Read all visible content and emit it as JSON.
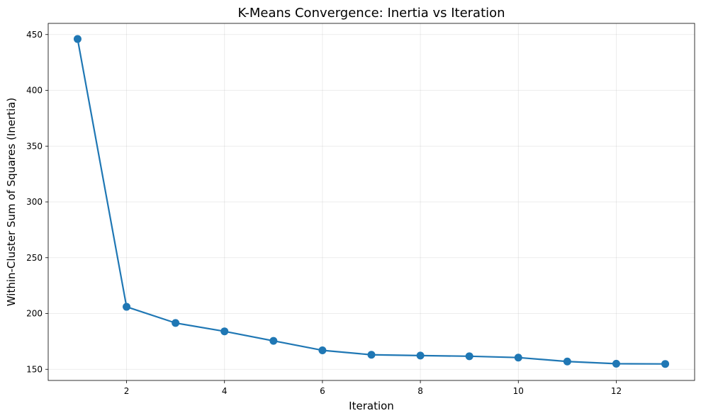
{
  "chart_data": {
    "type": "line",
    "title": "K-Means Convergence: Inertia vs Iteration",
    "xlabel": "Iteration",
    "ylabel": "Within-Cluster Sum of Squares (Inertia)",
    "xlim": [
      0.4,
      13.6
    ],
    "ylim": [
      140,
      460
    ],
    "xticks": [
      2,
      4,
      6,
      8,
      10,
      12
    ],
    "yticks": [
      150,
      200,
      250,
      300,
      350,
      400,
      450
    ],
    "grid": true,
    "series": [
      {
        "x": [
          1,
          2,
          3,
          4,
          5,
          6,
          7,
          8,
          9,
          10,
          11,
          12,
          13
        ],
        "values": [
          446,
          206,
          191.5,
          184,
          175.5,
          167,
          163,
          162.3,
          161.7,
          160.5,
          157,
          155,
          154.8
        ],
        "color": "#1f77b4",
        "marker": "circle"
      }
    ]
  }
}
